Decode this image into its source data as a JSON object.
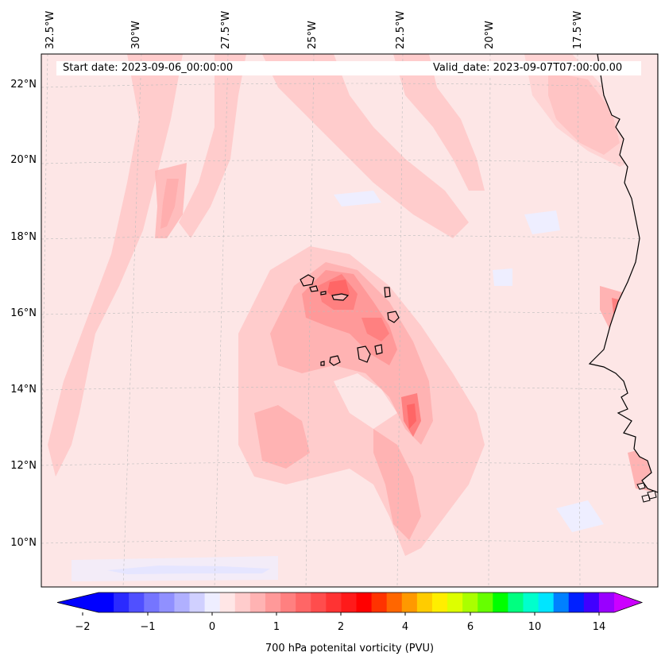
{
  "header": {
    "start_date": "Start date: 2023-09-06_00:00:00",
    "valid_date": "Valid_date: 2023-09-07T07:00:00.00"
  },
  "map": {
    "lon_labels": [
      "32.5°W",
      "30°W",
      "27.5°W",
      "25°W",
      "22.5°W",
      "20°W",
      "17.5°W"
    ],
    "lat_labels": [
      "22°N",
      "20°N",
      "18°N",
      "16°N",
      "14°N",
      "12°N",
      "10°N"
    ],
    "field": "700 hPa potenital vorticity (PVU)",
    "background_color": "#fde6e6"
  },
  "colorbar": {
    "label": "700 hPa potenital vorticity (PVU)",
    "ticks": [
      "−2",
      "−1",
      "0",
      "1",
      "2",
      "4",
      "6",
      "10",
      "14"
    ],
    "colors": [
      "#0000ff",
      "#2a2aff",
      "#5050ff",
      "#7575ff",
      "#9090ff",
      "#b0b0ff",
      "#d0d0ff",
      "#eeeeff",
      "#ffe6e6",
      "#ffcccc",
      "#ffb3b3",
      "#ff9999",
      "#ff8080",
      "#ff6666",
      "#ff4d4d",
      "#ff3333",
      "#ff1a1a",
      "#ff0000",
      "#ff3300",
      "#ff6600",
      "#ff9900",
      "#ffcc00",
      "#ffee00",
      "#ddff00",
      "#aaff00",
      "#66ff00",
      "#00ff00",
      "#00ff80",
      "#00ffcc",
      "#00e5ff",
      "#0080ff",
      "#0020ff",
      "#4000ff",
      "#9900ff"
    ],
    "over_color": "#cc00ff",
    "under_color": "#0000ff"
  }
}
